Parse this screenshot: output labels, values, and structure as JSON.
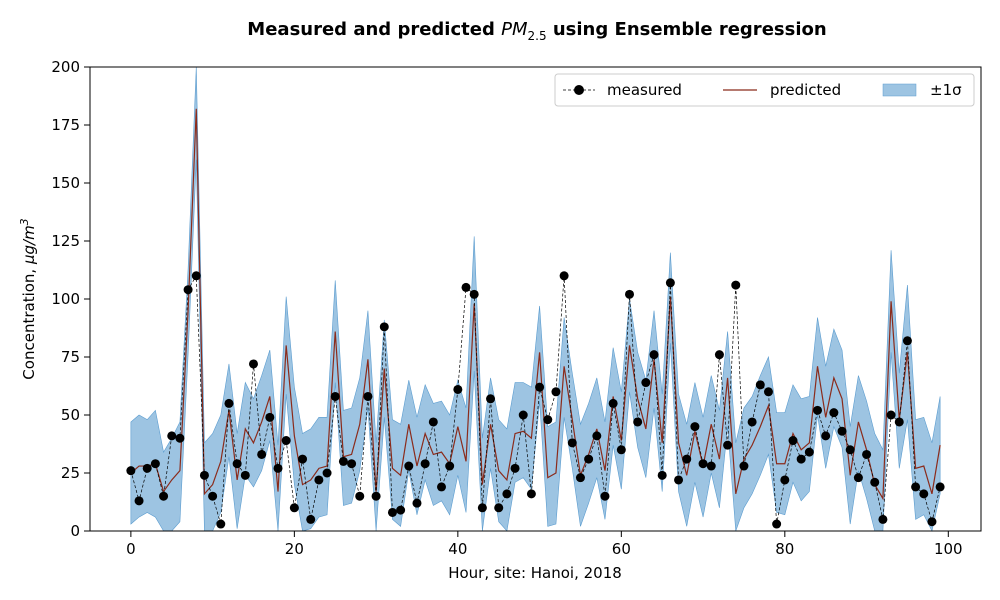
{
  "chart_data": {
    "type": "line",
    "title_prefix": "Measured and predicted ",
    "title_var": "PM",
    "title_sub": "2.5",
    "title_suffix": " using Ensemble regression",
    "xlabel": "Hour, site: Hanoi, 2018",
    "ylabel_prefix": "Concentration, ",
    "ylabel_unit": "μg/m",
    "ylabel_sup": "3",
    "xlim": [
      -5,
      104
    ],
    "ylim": [
      0,
      200
    ],
    "xticks": [
      0,
      20,
      40,
      60,
      80,
      100
    ],
    "yticks": [
      0,
      25,
      50,
      75,
      100,
      125,
      150,
      175,
      200
    ],
    "legend": {
      "position": "top-right",
      "measured": "measured",
      "predicted": "predicted",
      "band": "±1σ"
    },
    "colors": {
      "measured": "#000000",
      "predicted": "#8b2b1b",
      "band": "#5b9ccf"
    },
    "x": [
      0,
      1,
      2,
      3,
      4,
      5,
      6,
      7,
      8,
      9,
      10,
      11,
      12,
      13,
      14,
      15,
      16,
      17,
      18,
      19,
      20,
      21,
      22,
      23,
      24,
      25,
      26,
      27,
      28,
      29,
      30,
      31,
      32,
      33,
      34,
      35,
      36,
      37,
      38,
      39,
      40,
      41,
      42,
      43,
      44,
      45,
      46,
      47,
      48,
      49,
      50,
      51,
      52,
      53,
      54,
      55,
      56,
      57,
      58,
      59,
      60,
      61,
      62,
      63,
      64,
      65,
      66,
      67,
      68,
      69,
      70,
      71,
      72,
      73,
      74,
      75,
      76,
      77,
      78,
      79,
      80,
      81,
      82,
      83,
      84,
      85,
      86,
      87,
      88,
      89,
      90,
      91,
      92,
      93,
      94,
      95,
      96,
      97,
      98,
      99
    ],
    "measured": [
      26,
      13,
      27,
      29,
      15,
      41,
      40,
      104,
      110,
      24,
      15,
      3,
      55,
      29,
      24,
      72,
      33,
      49,
      27,
      39,
      10,
      31,
      5,
      22,
      25,
      58,
      30,
      29,
      15,
      58,
      15,
      88,
      8,
      9,
      28,
      12,
      29,
      47,
      19,
      28,
      61,
      105,
      102,
      10,
      57,
      10,
      16,
      27,
      50,
      16,
      62,
      48,
      60,
      110,
      38,
      23,
      31,
      41,
      15,
      55,
      35,
      102,
      47,
      64,
      76,
      24,
      107,
      22,
      31,
      45,
      29,
      28,
      76,
      37,
      106,
      28,
      47,
      63,
      60,
      3,
      22,
      39,
      31,
      34,
      52,
      41,
      51,
      43,
      35,
      23,
      33,
      21,
      5,
      50,
      47,
      82,
      19,
      16,
      4,
      19
    ],
    "predicted": [
      25,
      28,
      28,
      29,
      17,
      22,
      26,
      95,
      182,
      16,
      20,
      30,
      52,
      22,
      44,
      38,
      47,
      58,
      17,
      80,
      41,
      20,
      22,
      27,
      28,
      86,
      32,
      33,
      46,
      74,
      17,
      70,
      27,
      24,
      46,
      28,
      42,
      33,
      34,
      29,
      45,
      30,
      98,
      20,
      46,
      26,
      22,
      42,
      43,
      40,
      77,
      23,
      25,
      71,
      48,
      24,
      33,
      44,
      26,
      58,
      39,
      80,
      57,
      44,
      74,
      38,
      101,
      38,
      24,
      43,
      28,
      46,
      31,
      66,
      16,
      31,
      37,
      45,
      54,
      29,
      29,
      42,
      35,
      38,
      71,
      49,
      66,
      57,
      24,
      47,
      35,
      20,
      14,
      99,
      48,
      77,
      27,
      28,
      16,
      37
    ],
    "sigma_upper": [
      47,
      50,
      48,
      52,
      34,
      40,
      47,
      113,
      200,
      38,
      42,
      50,
      72,
      42,
      64,
      57,
      67,
      78,
      37,
      101,
      62,
      42,
      44,
      49,
      49,
      108,
      52,
      53,
      66,
      95,
      38,
      91,
      48,
      46,
      65,
      49,
      63,
      55,
      56,
      50,
      65,
      53,
      127,
      40,
      66,
      48,
      44,
      64,
      64,
      62,
      97,
      45,
      47,
      92,
      68,
      46,
      55,
      66,
      47,
      79,
      60,
      100,
      77,
      65,
      95,
      59,
      120,
      59,
      46,
      64,
      49,
      67,
      52,
      86,
      38,
      53,
      58,
      67,
      75,
      51,
      51,
      63,
      57,
      58,
      92,
      71,
      87,
      78,
      45,
      67,
      56,
      42,
      35,
      121,
      68,
      106,
      48,
      49,
      38,
      58
    ],
    "sigma_lower": [
      3,
      6,
      8,
      6,
      0,
      0,
      4,
      76,
      160,
      0,
      0,
      8,
      32,
      1,
      24,
      19,
      26,
      39,
      0,
      59,
      20,
      0,
      1,
      6,
      7,
      64,
      11,
      12,
      26,
      53,
      0,
      49,
      5,
      2,
      26,
      7,
      22,
      11,
      13,
      7,
      24,
      8,
      69,
      0,
      27,
      4,
      0,
      21,
      23,
      18,
      56,
      2,
      3,
      49,
      27,
      2,
      12,
      23,
      5,
      37,
      18,
      60,
      36,
      23,
      53,
      17,
      81,
      17,
      2,
      21,
      6,
      25,
      10,
      45,
      0,
      10,
      16,
      24,
      33,
      8,
      7,
      21,
      13,
      17,
      50,
      27,
      45,
      36,
      3,
      26,
      14,
      0,
      0,
      77,
      27,
      48,
      5,
      7,
      0,
      16
    ]
  }
}
